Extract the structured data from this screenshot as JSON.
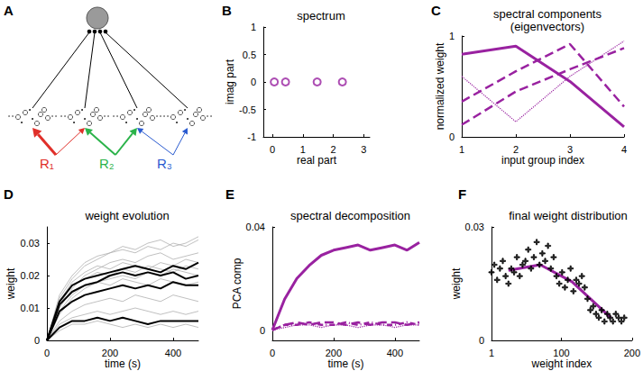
{
  "diagram": {
    "annotations": [
      "A"
    ],
    "inputs": [
      {
        "label": "R₁",
        "color": "#e0302a"
      },
      {
        "label": "R₂",
        "color": "#2bb34a"
      },
      {
        "label": "R₃",
        "color": "#2a5bd0"
      }
    ]
  },
  "chart_data": [
    {
      "type": "scatter",
      "annotations": [
        "B"
      ],
      "title": "spectrum",
      "x_label": "real part",
      "y_label": "imag part",
      "xlim": [
        -0.3,
        3.2
      ],
      "xticks": [
        0,
        1,
        2,
        3
      ],
      "ylim": [
        -1,
        1
      ],
      "yticks": [
        -1,
        -0.5,
        0,
        0.5,
        1
      ],
      "grid": false,
      "series": [
        {
          "color": "#9922a0",
          "marker": "circle_open",
          "x": [
            0.06,
            0.43,
            1.47,
            2.3
          ],
          "values": [
            0,
            0,
            0,
            0
          ]
        }
      ]
    },
    {
      "type": "line",
      "annotations": [
        "C"
      ],
      "title": "spectral components",
      "subtitle": "(eigenvectors)",
      "x_label": "input group index",
      "y_label": "normalized weight",
      "xlim": [
        1,
        4
      ],
      "xticks": [
        1,
        2,
        3,
        4
      ],
      "ylim": [
        0,
        1
      ],
      "yticks": [
        0,
        1
      ],
      "grid": false,
      "x": [
        1,
        2,
        3,
        4
      ],
      "series": [
        {
          "color": "#9922a0",
          "line_style": "solid",
          "values": [
            0.82,
            0.9,
            0.55,
            0.1
          ]
        },
        {
          "color": "#9922a0",
          "line_style": "dashed",
          "values": [
            0.12,
            0.45,
            0.67,
            0.88
          ]
        },
        {
          "color": "#9922a0",
          "line_style": "dashed",
          "values": [
            0.35,
            0.65,
            0.92,
            0.3
          ]
        },
        {
          "color": "#9922a0",
          "line_style": "dotted",
          "values": [
            0.6,
            0.15,
            0.6,
            0.95
          ]
        }
      ]
    },
    {
      "type": "line",
      "annotations": [
        "D"
      ],
      "title": "weight evolution",
      "x_label": "time (s)",
      "y_label": "weight",
      "xlim": [
        0,
        480
      ],
      "xticks": [
        0,
        200,
        400
      ],
      "ylim": [
        0,
        0.035
      ],
      "yticks": [
        0,
        0.01,
        0.02,
        0.03
      ],
      "grid": false,
      "x": [
        0,
        40,
        80,
        120,
        160,
        200,
        240,
        280,
        320,
        360,
        400,
        440,
        480
      ],
      "series": [
        {
          "color": "#b0b0b0",
          "values": [
            0,
            0.008,
            0.013,
            0.016,
            0.018,
            0.019,
            0.02,
            0.019,
            0.021,
            0.02,
            0.022,
            0.021,
            0.02
          ]
        },
        {
          "color": "#b0b0b0",
          "values": [
            0,
            0.014,
            0.02,
            0.024,
            0.026,
            0.027,
            0.028,
            0.027,
            0.029,
            0.028,
            0.03,
            0.029,
            0.031
          ]
        },
        {
          "color": "#b0b0b0",
          "values": [
            0,
            0.01,
            0.016,
            0.02,
            0.022,
            0.024,
            0.025,
            0.024,
            0.026,
            0.027,
            0.025,
            0.026,
            0.027
          ]
        },
        {
          "color": "#b0b0b0",
          "values": [
            0,
            0.006,
            0.009,
            0.011,
            0.012,
            0.013,
            0.012,
            0.014,
            0.013,
            0.012,
            0.014,
            0.013,
            0.012
          ]
        },
        {
          "color": "#b0b0b0",
          "values": [
            0,
            0.012,
            0.018,
            0.021,
            0.023,
            0.022,
            0.024,
            0.023,
            0.022,
            0.024,
            0.023,
            0.025,
            0.024
          ]
        },
        {
          "color": "#b0b0b0",
          "values": [
            0,
            0.005,
            0.007,
            0.008,
            0.009,
            0.008,
            0.009,
            0.01,
            0.009,
            0.008,
            0.009,
            0.008,
            0.009
          ]
        },
        {
          "color": "#b0b0b0",
          "values": [
            0,
            0.011,
            0.017,
            0.019,
            0.021,
            0.02,
            0.022,
            0.021,
            0.023,
            0.022,
            0.021,
            0.023,
            0.022
          ]
        },
        {
          "color": "#b0b0b0",
          "values": [
            0,
            0.009,
            0.014,
            0.017,
            0.018,
            0.017,
            0.019,
            0.018,
            0.017,
            0.019,
            0.018,
            0.017,
            0.018
          ]
        },
        {
          "color": "#b0b0b0",
          "values": [
            0,
            0.003,
            0.005,
            0.005,
            0.006,
            0.005,
            0.004,
            0.005,
            0.004,
            0.005,
            0.004,
            0.005,
            0.004
          ]
        },
        {
          "color": "#b0b0b0",
          "values": [
            0,
            0.013,
            0.019,
            0.023,
            0.025,
            0.027,
            0.029,
            0.028,
            0.03,
            0.031,
            0.029,
            0.03,
            0.032
          ]
        },
        {
          "color": "#000000",
          "values": [
            0,
            0.012,
            0.017,
            0.019,
            0.02,
            0.021,
            0.022,
            0.023,
            0.022,
            0.021,
            0.023,
            0.022,
            0.024
          ]
        },
        {
          "color": "#000000",
          "values": [
            0,
            0.011,
            0.015,
            0.017,
            0.018,
            0.02,
            0.021,
            0.02,
            0.021,
            0.02,
            0.021,
            0.019,
            0.02
          ]
        },
        {
          "color": "#000000",
          "values": [
            0,
            0.009,
            0.012,
            0.014,
            0.015,
            0.016,
            0.017,
            0.016,
            0.017,
            0.016,
            0.018,
            0.017,
            0.017
          ]
        },
        {
          "color": "#000000",
          "values": [
            0,
            0.004,
            0.006,
            0.006,
            0.007,
            0.006,
            0.007,
            0.006,
            0.005,
            0.006,
            0.006,
            0.006,
            0.006
          ]
        }
      ]
    },
    {
      "type": "line",
      "annotations": [
        "E"
      ],
      "title": "spectral decomposition",
      "x_label": "time (s)",
      "y_label": "PCA comp",
      "xlim": [
        0,
        480
      ],
      "xticks": [
        0,
        200,
        400
      ],
      "ylim": [
        -0.004,
        0.04
      ],
      "yticks": [
        0,
        0.04
      ],
      "grid": false,
      "x": [
        0,
        40,
        80,
        120,
        160,
        200,
        240,
        280,
        320,
        360,
        400,
        440,
        480
      ],
      "series": [
        {
          "color": "#9922a0",
          "line_style": "solid",
          "values": [
            0,
            0.012,
            0.02,
            0.025,
            0.029,
            0.031,
            0.032,
            0.033,
            0.031,
            0.032,
            0.033,
            0.031,
            0.034
          ]
        },
        {
          "color": "#9922a0",
          "line_style": "dashed",
          "values": [
            0,
            0.002,
            0.003,
            0.002,
            0.003,
            0.003,
            0.002,
            0.003,
            0.002,
            0.003,
            0.003,
            0.002,
            0.003
          ]
        },
        {
          "color": "#9922a0",
          "line_style": "dotted",
          "values": [
            0,
            0.001,
            0.002,
            0.002,
            0.001,
            0.002,
            0.002,
            0.001,
            0.002,
            0.002,
            0.001,
            0.002,
            0.002
          ]
        },
        {
          "color": "#9922a0",
          "line_style": "dashdot",
          "values": [
            0,
            0.002,
            0.002,
            0.003,
            0.002,
            0.002,
            0.003,
            0.002,
            0.003,
            0.002,
            0.002,
            0.003,
            0.002
          ]
        }
      ]
    },
    {
      "type": "scatter",
      "annotations": [
        "F"
      ],
      "title": "final weight distribution",
      "x_label": "weight index",
      "y_label": "weight",
      "xlim": [
        1,
        200
      ],
      "xticks": [
        1,
        100,
        200
      ],
      "ylim": [
        0,
        0.03
      ],
      "yticks": [
        0,
        0.03
      ],
      "grid": false,
      "series": [
        {
          "type": "scatter",
          "color": "#000000",
          "marker": "plus",
          "x": [
            1,
            5,
            9,
            13,
            17,
            21,
            25,
            29,
            33,
            37,
            41,
            45,
            49,
            53,
            57,
            61,
            65,
            69,
            73,
            77,
            81,
            85,
            89,
            93,
            97,
            101,
            105,
            109,
            113,
            117,
            121,
            125,
            129,
            133,
            137,
            141,
            145,
            149,
            153,
            157,
            161,
            165,
            169,
            173,
            177,
            181,
            185,
            189
          ],
          "values": [
            0.018,
            0.02,
            0.016,
            0.019,
            0.021,
            0.017,
            0.015,
            0.019,
            0.018,
            0.022,
            0.017,
            0.02,
            0.021,
            0.024,
            0.019,
            0.022,
            0.026,
            0.02,
            0.023,
            0.021,
            0.025,
            0.019,
            0.022,
            0.017,
            0.015,
            0.018,
            0.014,
            0.016,
            0.019,
            0.013,
            0.016,
            0.015,
            0.017,
            0.014,
            0.011,
            0.008,
            0.009,
            0.007,
            0.006,
            0.008,
            0.005,
            0.007,
            0.006,
            0.005,
            0.007,
            0.006,
            0.005,
            0.006
          ]
        },
        {
          "type": "line",
          "color": "#9922a0",
          "line_style": "solid",
          "x": [
            25,
            70,
            115,
            170
          ],
          "values": [
            0.0185,
            0.02,
            0.0155,
            0.006
          ]
        }
      ]
    }
  ]
}
